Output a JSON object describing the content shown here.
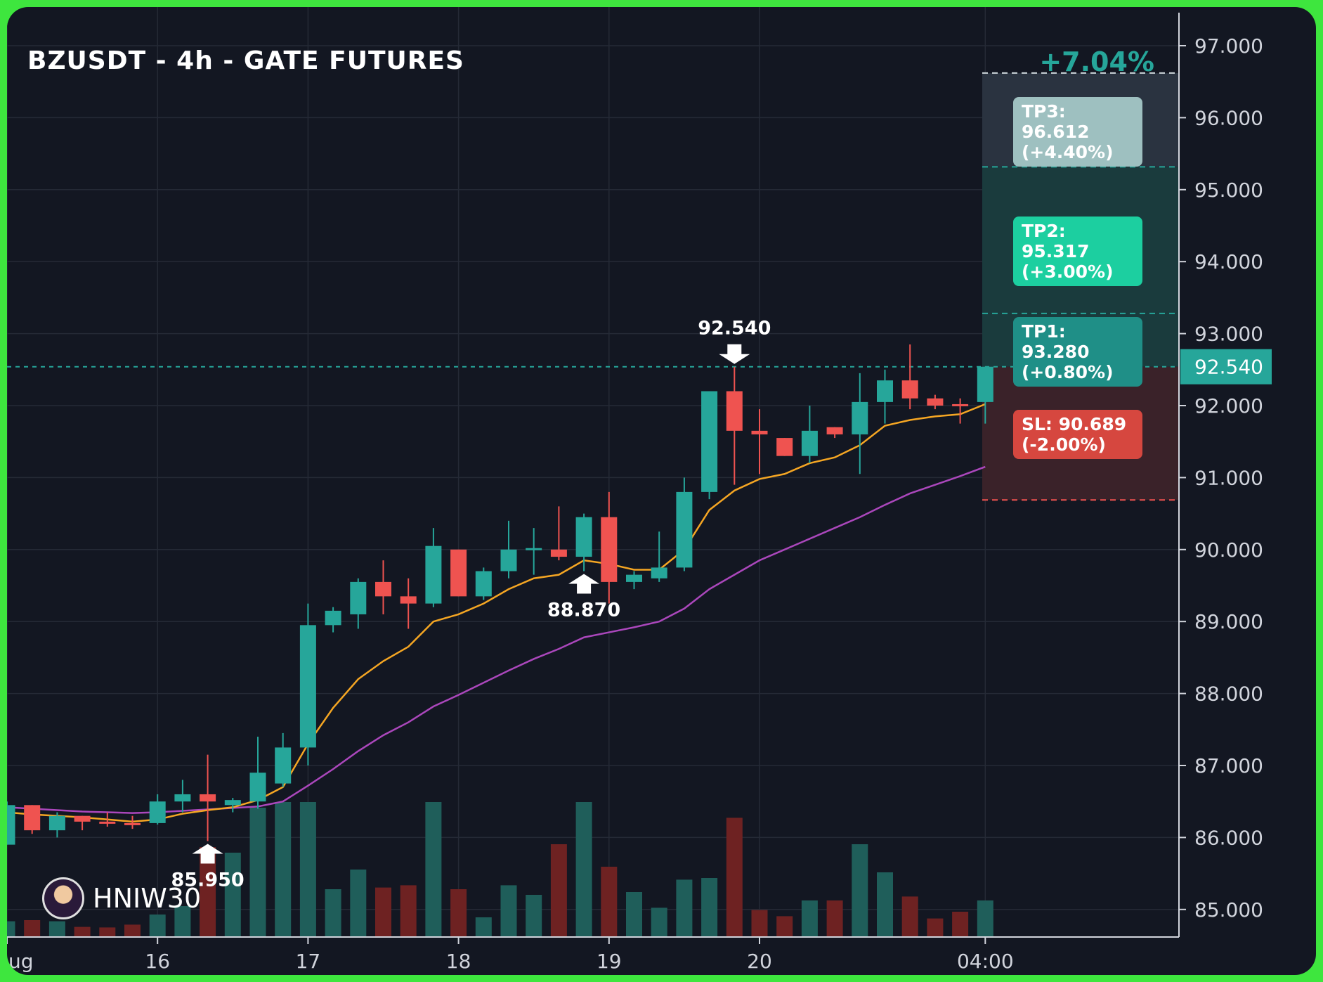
{
  "title": "BZUSDT - 4h - GATE FUTURES",
  "total_gain": "+7.04%",
  "brand": {
    "name": "HNIW30",
    "avatar_icon": "avatar-icon"
  },
  "targets": {
    "tp3": {
      "line1": "TP3: 96.612",
      "line2": "(+4.40%)",
      "value": 96.612
    },
    "tp2": {
      "line1": "TP2: 95.317",
      "line2": "(+3.00%)",
      "value": 95.317
    },
    "tp1": {
      "line1": "TP1: 93.280",
      "line2": "(+0.80%)",
      "value": 93.28
    },
    "sl": {
      "line1": "SL: 90.689",
      "line2": "(-2.00%)",
      "value": 90.689
    },
    "entry": {
      "value": 92.54,
      "label": "92.540"
    },
    "top_dashed": 96.62
  },
  "colors": {
    "background": "#131722",
    "frame": "#3ee63e",
    "up": "#26a69a",
    "down": "#ef5350",
    "volume_up": "#1f5e5a",
    "volume_down": "#6e2222",
    "ema_fast": "#f5a623",
    "ema_slow": "#ab47bc",
    "grid": "#252a36",
    "axis_text": "#d1d4dc",
    "tp_zone": "#1a3b3d",
    "sl_zone": "#3a2229"
  },
  "chart_data": {
    "type": "candlestick",
    "title": "BZUSDT - 4h - GATE FUTURES",
    "y_axis": {
      "min": 84.6,
      "max": 97.3,
      "ticks": [
        "85.000",
        "86.000",
        "87.000",
        "88.000",
        "89.000",
        "90.000",
        "91.000",
        "92.000",
        "93.000",
        "94.000",
        "95.000",
        "96.000",
        "97.000"
      ],
      "current_price_label": "92.540"
    },
    "x_axis": {
      "ticks": [
        {
          "label": "ug",
          "index": 0
        },
        {
          "label": "16",
          "index": 6
        },
        {
          "label": "17",
          "index": 12
        },
        {
          "label": "18",
          "index": 18
        },
        {
          "label": "19",
          "index": 24
        },
        {
          "label": "20",
          "index": 30
        },
        {
          "label": "04:00",
          "index": 39
        }
      ]
    },
    "grid": true,
    "candles": [
      {
        "o": 85.9,
        "h": 86.5,
        "l": 85.9,
        "c": 86.45,
        "v": 0.28
      },
      {
        "o": 86.45,
        "h": 86.45,
        "l": 86.05,
        "c": 86.1,
        "v": 0.3
      },
      {
        "o": 86.1,
        "h": 86.35,
        "l": 86.0,
        "c": 86.3,
        "v": 0.28
      },
      {
        "o": 86.3,
        "h": 86.3,
        "l": 86.1,
        "c": 86.22,
        "v": 0.18
      },
      {
        "o": 86.22,
        "h": 86.35,
        "l": 86.15,
        "c": 86.2,
        "v": 0.17
      },
      {
        "o": 86.2,
        "h": 86.3,
        "l": 86.12,
        "c": 86.18,
        "v": 0.22
      },
      {
        "o": 86.2,
        "h": 86.6,
        "l": 86.18,
        "c": 86.5,
        "v": 0.4
      },
      {
        "o": 86.5,
        "h": 86.8,
        "l": 86.35,
        "c": 86.6,
        "v": 0.55
      },
      {
        "o": 86.6,
        "h": 87.15,
        "l": 85.95,
        "c": 86.5,
        "v": 1.6
      },
      {
        "o": 86.45,
        "h": 86.55,
        "l": 86.35,
        "c": 86.52,
        "v": 1.5
      },
      {
        "o": 86.5,
        "h": 87.4,
        "l": 86.4,
        "c": 86.9,
        "v": 2.3
      },
      {
        "o": 86.75,
        "h": 87.45,
        "l": 86.7,
        "c": 87.25,
        "v": 2.4
      },
      {
        "o": 87.25,
        "h": 89.25,
        "l": 87.0,
        "c": 88.95,
        "v": 2.4
      },
      {
        "o": 88.95,
        "h": 89.2,
        "l": 88.85,
        "c": 89.15,
        "v": 0.85
      },
      {
        "o": 89.1,
        "h": 89.6,
        "l": 88.9,
        "c": 89.55,
        "v": 1.2
      },
      {
        "o": 89.55,
        "h": 89.85,
        "l": 89.1,
        "c": 89.35,
        "v": 0.88
      },
      {
        "o": 89.35,
        "h": 89.6,
        "l": 88.9,
        "c": 89.25,
        "v": 0.92
      },
      {
        "o": 89.25,
        "h": 90.3,
        "l": 89.2,
        "c": 90.05,
        "v": 2.4
      },
      {
        "o": 90.0,
        "h": 90.0,
        "l": 89.35,
        "c": 89.35,
        "v": 0.85
      },
      {
        "o": 89.35,
        "h": 89.75,
        "l": 89.3,
        "c": 89.7,
        "v": 0.35
      },
      {
        "o": 89.7,
        "h": 90.4,
        "l": 89.6,
        "c": 90.0,
        "v": 0.92
      },
      {
        "o": 90.0,
        "h": 90.3,
        "l": 89.65,
        "c": 90.02,
        "v": 0.75
      },
      {
        "o": 90.0,
        "h": 90.6,
        "l": 89.85,
        "c": 89.9,
        "v": 1.65
      },
      {
        "o": 89.9,
        "h": 90.5,
        "l": 89.7,
        "c": 90.45,
        "v": 2.4
      },
      {
        "o": 90.45,
        "h": 90.8,
        "l": 89.25,
        "c": 89.55,
        "v": 1.25
      },
      {
        "o": 89.55,
        "h": 89.7,
        "l": 89.45,
        "c": 89.65,
        "v": 0.8
      },
      {
        "o": 89.6,
        "h": 90.25,
        "l": 89.55,
        "c": 89.75,
        "v": 0.52
      },
      {
        "o": 89.75,
        "h": 91.0,
        "l": 89.7,
        "c": 90.8,
        "v": 1.02
      },
      {
        "o": 90.8,
        "h": 92.2,
        "l": 90.7,
        "c": 92.2,
        "v": 1.05
      },
      {
        "o": 92.2,
        "h": 92.54,
        "l": 90.9,
        "c": 91.65,
        "v": 2.12
      },
      {
        "o": 91.65,
        "h": 91.95,
        "l": 91.05,
        "c": 91.6,
        "v": 0.48
      },
      {
        "o": 91.55,
        "h": 91.55,
        "l": 91.3,
        "c": 91.3,
        "v": 0.37
      },
      {
        "o": 91.3,
        "h": 92.0,
        "l": 91.2,
        "c": 91.65,
        "v": 0.65
      },
      {
        "o": 91.7,
        "h": 91.7,
        "l": 91.55,
        "c": 91.6,
        "v": 0.65
      },
      {
        "o": 91.6,
        "h": 92.45,
        "l": 91.05,
        "c": 92.05,
        "v": 1.65
      },
      {
        "o": 92.05,
        "h": 92.5,
        "l": 91.75,
        "c": 92.35,
        "v": 1.15
      },
      {
        "o": 92.35,
        "h": 92.85,
        "l": 91.95,
        "c": 92.1,
        "v": 0.72
      },
      {
        "o": 92.1,
        "h": 92.15,
        "l": 91.95,
        "c": 92.0,
        "v": 0.33
      },
      {
        "o": 92.02,
        "h": 92.1,
        "l": 91.75,
        "c": 92.0,
        "v": 0.45
      },
      {
        "o": 92.05,
        "h": 92.54,
        "l": 91.75,
        "c": 92.54,
        "v": 0.65
      }
    ],
    "ema_fast": [
      86.35,
      86.32,
      86.3,
      86.28,
      86.25,
      86.22,
      86.25,
      86.33,
      86.38,
      86.42,
      86.52,
      86.7,
      87.3,
      87.8,
      88.2,
      88.45,
      88.65,
      89.0,
      89.1,
      89.25,
      89.45,
      89.6,
      89.65,
      89.85,
      89.8,
      89.72,
      89.72,
      90.0,
      90.55,
      90.82,
      90.98,
      91.05,
      91.2,
      91.28,
      91.45,
      91.72,
      91.8,
      91.85,
      91.88,
      92.02
    ],
    "ema_slow": [
      86.42,
      86.4,
      86.38,
      86.36,
      86.35,
      86.34,
      86.35,
      86.37,
      86.39,
      86.41,
      86.43,
      86.5,
      86.72,
      86.95,
      87.2,
      87.42,
      87.6,
      87.82,
      87.98,
      88.15,
      88.32,
      88.48,
      88.62,
      88.78,
      88.85,
      88.92,
      89.0,
      89.18,
      89.45,
      89.65,
      89.85,
      90.0,
      90.15,
      90.3,
      90.45,
      90.62,
      90.78,
      90.9,
      91.02,
      91.15
    ],
    "annotations": [
      {
        "label": "85.950",
        "index": 8,
        "price": 85.95,
        "type": "buy-arrow"
      },
      {
        "label": "88.870",
        "index": 23,
        "price": 88.87,
        "type": "buy-arrow"
      },
      {
        "label": "92.540",
        "index": 29,
        "price": 92.54,
        "type": "sell-arrow"
      }
    ]
  }
}
